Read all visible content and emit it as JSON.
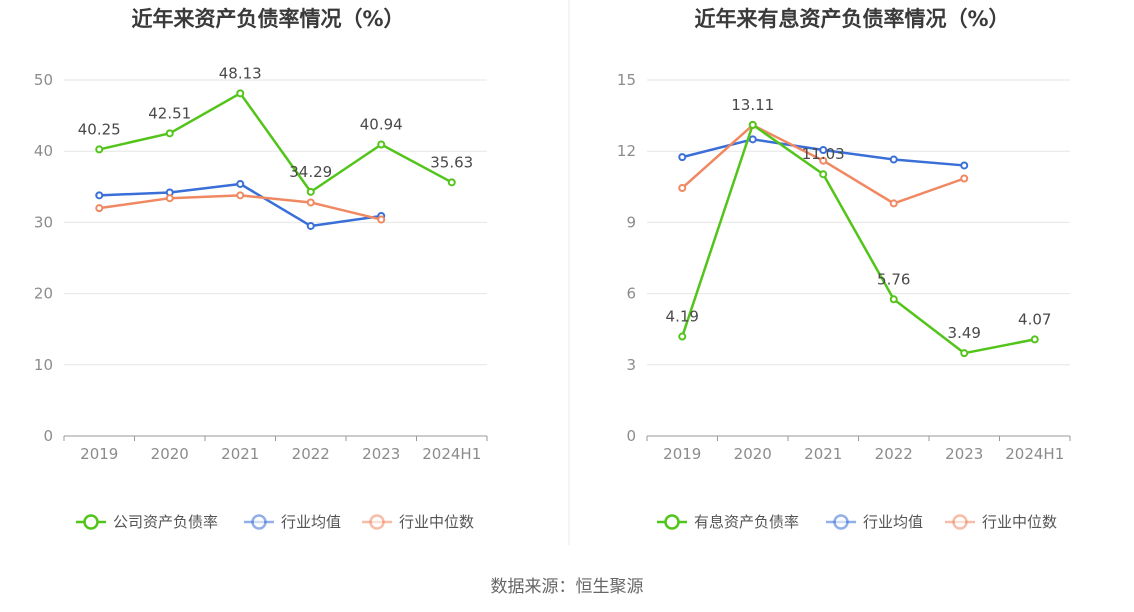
{
  "source": "数据来源：恒生聚源",
  "colors": {
    "company": "#52c41a",
    "avg": "#3a6fd8",
    "median": "#f08862",
    "grid": "#e6e6e6",
    "axis": "#999999",
    "divider": "#e8e8e8"
  },
  "chart_data": [
    {
      "type": "line",
      "title": "近年来资产负债率情况（%）",
      "categories": [
        "2019",
        "2020",
        "2021",
        "2022",
        "2023",
        "2024H1"
      ],
      "ylim": [
        0,
        50
      ],
      "yticks": [
        0,
        10,
        20,
        30,
        40,
        50
      ],
      "series": [
        {
          "name": "公司资产负债率",
          "color_key": "company",
          "values": [
            40.25,
            42.51,
            48.13,
            34.29,
            40.94,
            35.63
          ],
          "labels": [
            "40.25",
            "42.51",
            "48.13",
            "34.29",
            "40.94",
            "35.63"
          ]
        },
        {
          "name": "行业均值",
          "color_key": "avg",
          "values": [
            33.8,
            34.2,
            35.4,
            29.5,
            30.9,
            null
          ]
        },
        {
          "name": "行业中位数",
          "color_key": "median",
          "values": [
            32.0,
            33.4,
            33.8,
            32.8,
            30.4,
            null
          ]
        }
      ],
      "legend": {
        "position": "bottom"
      }
    },
    {
      "type": "line",
      "title": "近年来有息资产负债率情况（%）",
      "categories": [
        "2019",
        "2020",
        "2021",
        "2022",
        "2023",
        "2024H1"
      ],
      "ylim": [
        0,
        15
      ],
      "yticks": [
        0,
        3,
        6,
        9,
        12,
        15
      ],
      "series": [
        {
          "name": "有息资产负债率",
          "color_key": "company",
          "values": [
            4.19,
            13.11,
            11.03,
            5.76,
            3.49,
            4.07
          ],
          "labels": [
            "4.19",
            "13.11",
            "11.03",
            "5.76",
            "3.49",
            "4.07"
          ]
        },
        {
          "name": "行业均值",
          "color_key": "avg",
          "values": [
            11.75,
            12.5,
            12.05,
            11.65,
            11.4,
            null
          ]
        },
        {
          "name": "行业中位数",
          "color_key": "median",
          "values": [
            10.45,
            13.1,
            11.6,
            9.8,
            10.85,
            null
          ]
        }
      ],
      "legend": {
        "position": "bottom"
      }
    }
  ]
}
